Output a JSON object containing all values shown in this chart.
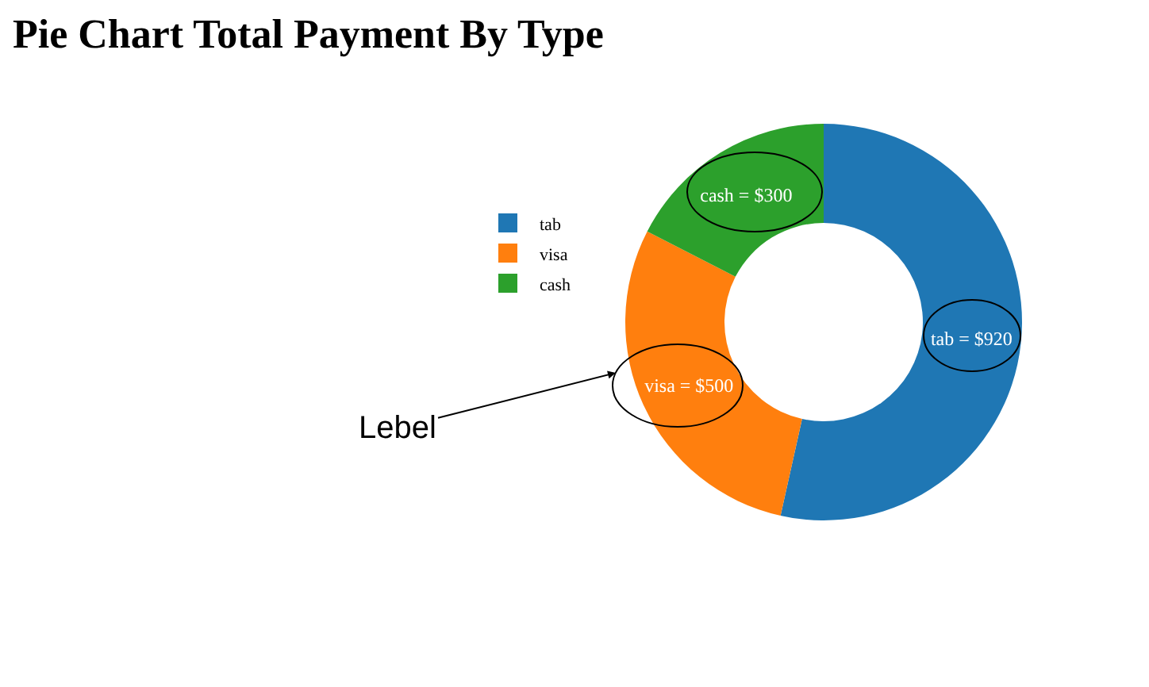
{
  "chart_data": {
    "type": "donut",
    "title": "Pie Chart Total Payment By Type",
    "categories": [
      "tab",
      "visa",
      "cash"
    ],
    "values": [
      920,
      500,
      300
    ],
    "colors": [
      "#1f77b4",
      "#ff7f0e",
      "#2ca02c"
    ],
    "value_labels": [
      "tab = $920",
      "visa = $500",
      "cash = $300"
    ],
    "legend": "left",
    "annotations": [
      "Lebel"
    ]
  }
}
